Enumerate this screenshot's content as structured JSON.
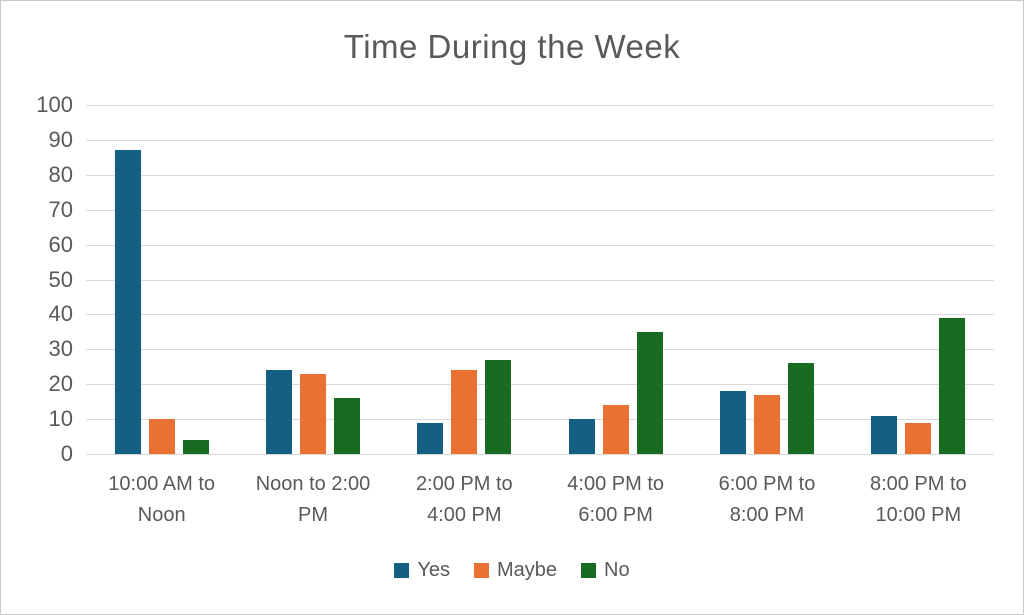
{
  "chart_data": {
    "type": "bar",
    "title": "Time During the Week",
    "categories": [
      "10:00 AM to Noon",
      "Noon to 2:00 PM",
      "2:00 PM to 4:00 PM",
      "4:00 PM to 6:00 PM",
      "6:00 PM to 8:00 PM",
      "8:00 PM to 10:00 PM"
    ],
    "series": [
      {
        "name": "Yes",
        "color": "#156082",
        "values": [
          87,
          24,
          9,
          10,
          18,
          11
        ]
      },
      {
        "name": "Maybe",
        "color": "#E97132",
        "values": [
          10,
          23,
          24,
          14,
          17,
          9
        ]
      },
      {
        "name": "No",
        "color": "#196B24",
        "values": [
          4,
          16,
          27,
          35,
          26,
          39
        ]
      }
    ],
    "y_axis": {
      "min": 0,
      "max": 100,
      "step": 10,
      "tick_labels": [
        "0",
        "10",
        "20",
        "30",
        "40",
        "50",
        "60",
        "70",
        "80",
        "90",
        "100"
      ]
    },
    "xlabel": "",
    "ylabel": "",
    "grid": "horizontal",
    "legend_position": "bottom",
    "palette": {
      "text": "#595959",
      "gridline": "#D9D9D9",
      "border": "#C8C8C8",
      "background": "#FFFFFF"
    }
  }
}
